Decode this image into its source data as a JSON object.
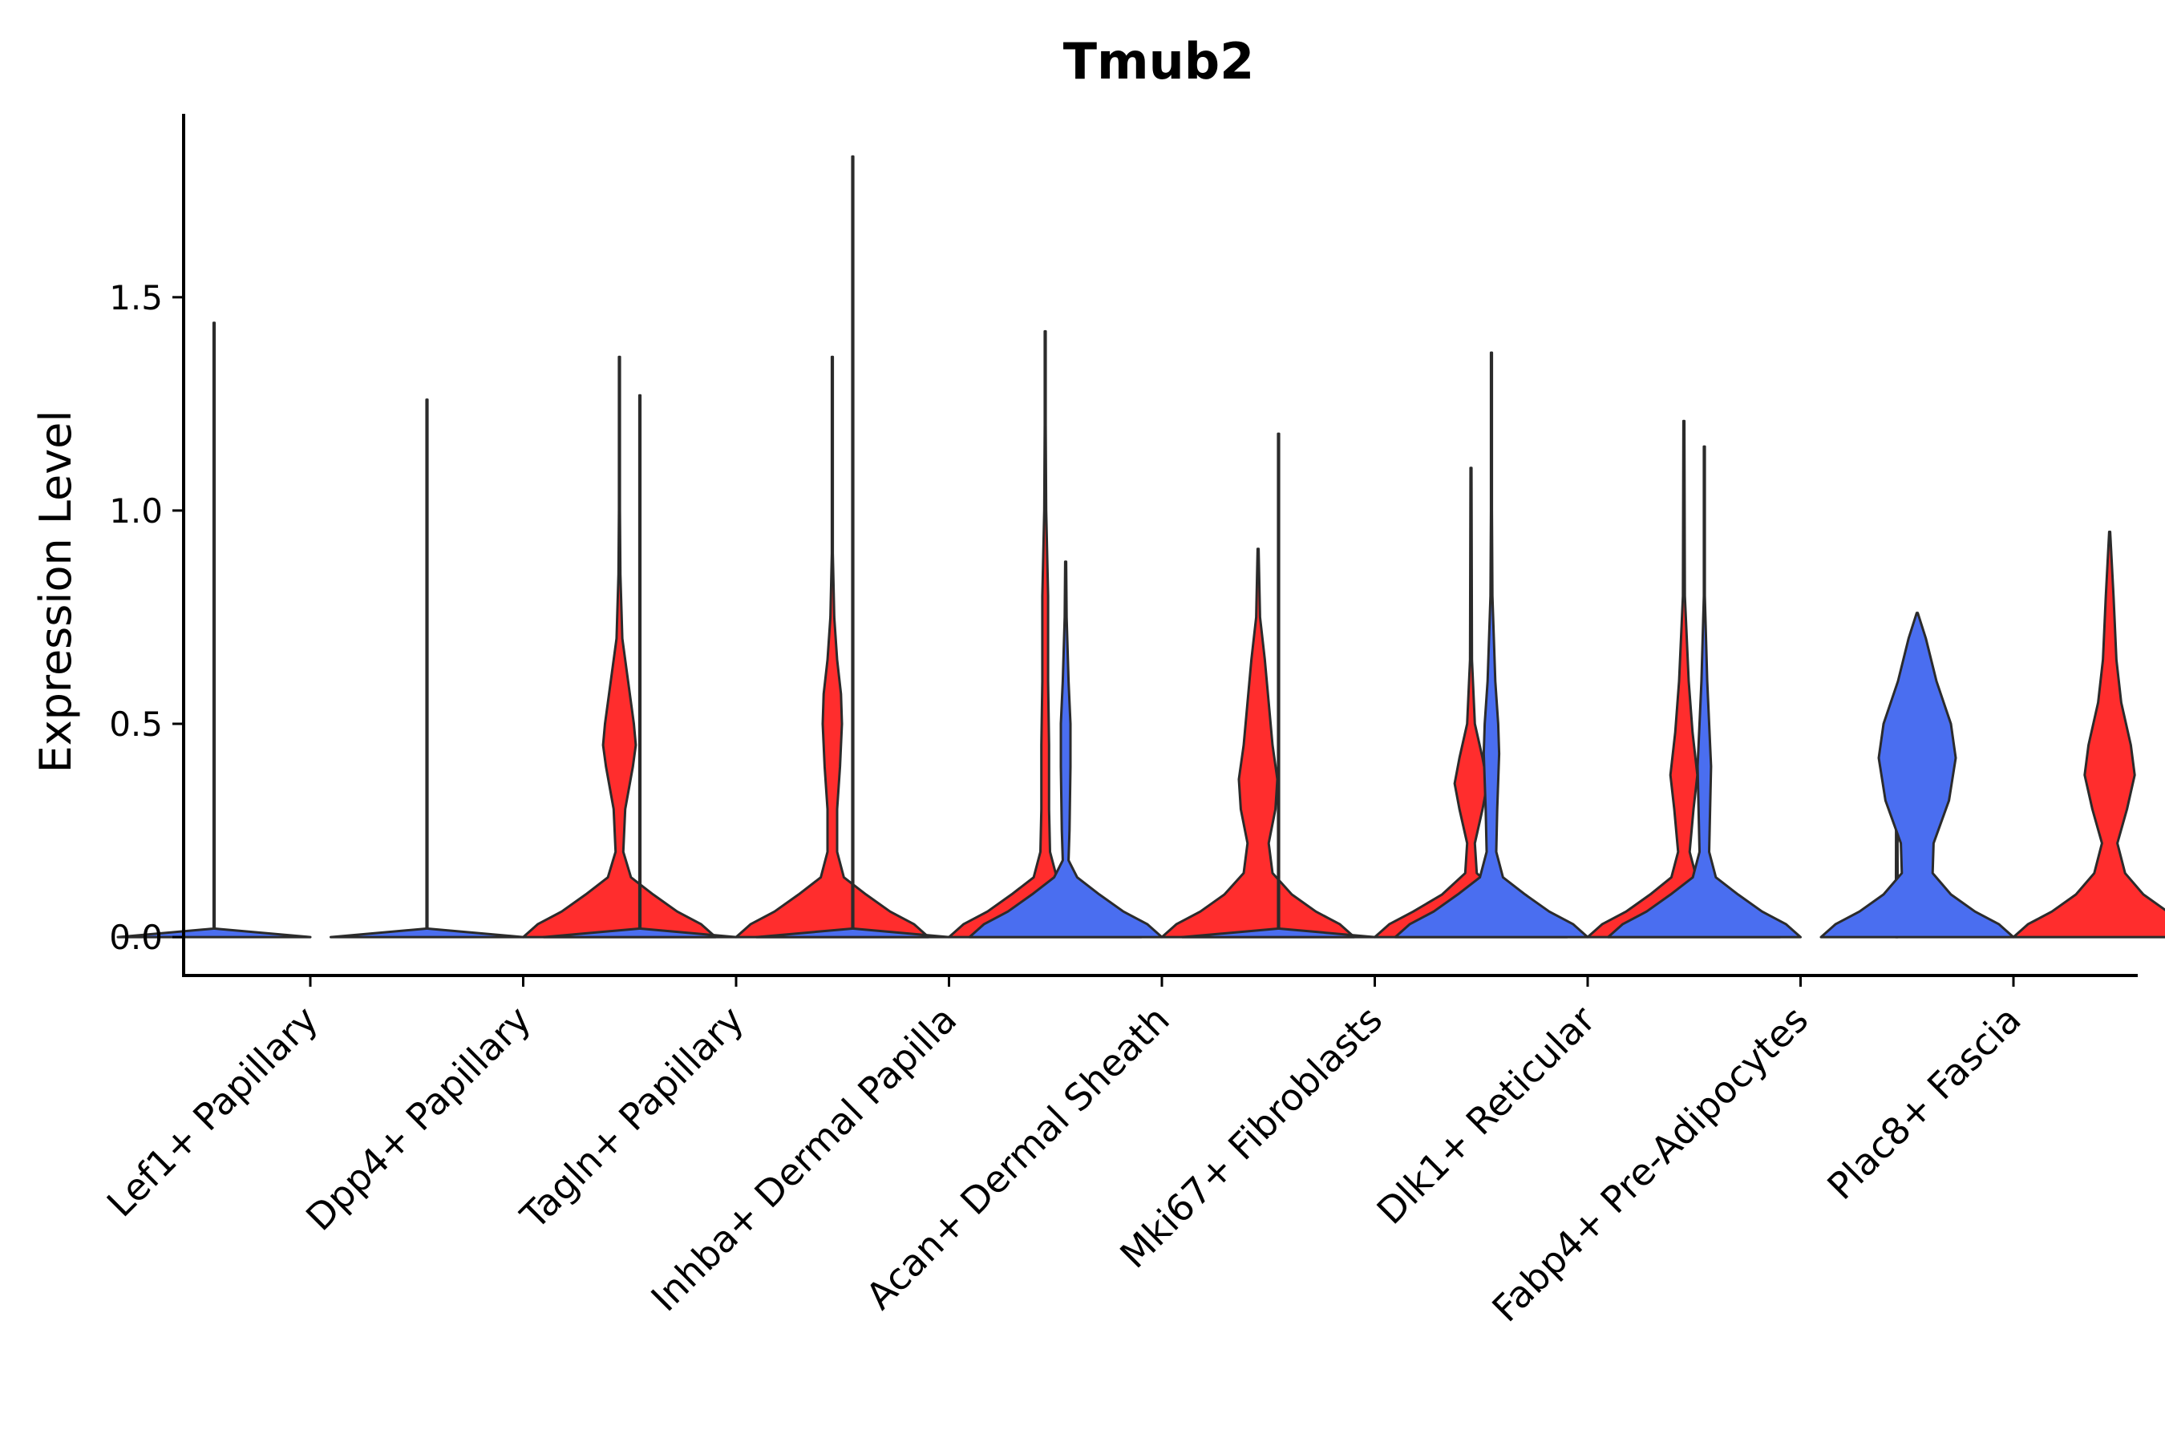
{
  "chart_data": {
    "type": "split-violin",
    "title": "Tmub2",
    "xlabel": "",
    "ylabel": "Expression Level",
    "ylim": [
      -0.09,
      1.93
    ],
    "yticks": [
      0.0,
      0.5,
      1.0,
      1.5
    ],
    "ytick_labels": [
      "0.0",
      "0.5",
      "1.0",
      "1.5"
    ],
    "grid": false,
    "legend": "none",
    "colors": {
      "blue_group": "#4A6EF0",
      "red_group": "#FF2D2D",
      "outline": "#2B2B2B",
      "axis": "#000000"
    },
    "categories": [
      "Lef1+ Papillary",
      "Dpp4+ Papillary",
      "Tagln+ Papillary",
      "Inhba+ Dermal Papilla",
      "Acan+ Dermal Sheath",
      "Mki67+ Fibroblasts",
      "Dlk1+ Reticular",
      "Fabp4+ Pre-Adipocytes",
      "Plac8+ Fascia"
    ],
    "series": [
      {
        "name": "blue group",
        "color": "#4A6EF0",
        "violins": [
          {
            "max": 1.44,
            "profile": [
              [
                0,
                1.0
              ],
              [
                0.02,
                0.0
              ]
            ]
          },
          {
            "max": 1.26,
            "profile": [
              [
                0,
                1.0
              ],
              [
                0.02,
                0.0
              ]
            ]
          },
          {
            "max": 1.27,
            "profile": [
              [
                0,
                1.0
              ],
              [
                0.02,
                0.0
              ]
            ]
          },
          {
            "max": 1.83,
            "profile": [
              [
                0,
                1.0
              ],
              [
                0.02,
                0.0
              ]
            ]
          },
          {
            "max": 0.88,
            "profile": [
              [
                0,
                1.0
              ],
              [
                0.03,
                0.85
              ],
              [
                0.06,
                0.6
              ],
              [
                0.1,
                0.35
              ],
              [
                0.14,
                0.12
              ],
              [
                0.18,
                0.03
              ],
              [
                0.25,
                0.04
              ],
              [
                0.4,
                0.05
              ],
              [
                0.5,
                0.05
              ],
              [
                0.6,
                0.03
              ],
              [
                0.75,
                0.01
              ],
              [
                0.88,
                0.0
              ]
            ]
          },
          {
            "max": 1.18,
            "profile": [
              [
                0,
                1.0
              ],
              [
                0.02,
                0.0
              ]
            ]
          },
          {
            "max": 1.37,
            "profile": [
              [
                0,
                1.0
              ],
              [
                0.03,
                0.85
              ],
              [
                0.06,
                0.6
              ],
              [
                0.1,
                0.35
              ],
              [
                0.14,
                0.12
              ],
              [
                0.2,
                0.05
              ],
              [
                0.3,
                0.06
              ],
              [
                0.43,
                0.08
              ],
              [
                0.5,
                0.07
              ],
              [
                0.6,
                0.04
              ],
              [
                0.8,
                0.01
              ],
              [
                1.0,
                0.005
              ],
              [
                1.37,
                0.0
              ]
            ]
          },
          {
            "max": 1.15,
            "profile": [
              [
                0,
                1.0
              ],
              [
                0.03,
                0.85
              ],
              [
                0.06,
                0.6
              ],
              [
                0.1,
                0.35
              ],
              [
                0.14,
                0.12
              ],
              [
                0.2,
                0.05
              ],
              [
                0.3,
                0.06
              ],
              [
                0.4,
                0.07
              ],
              [
                0.5,
                0.05
              ],
              [
                0.6,
                0.03
              ],
              [
                0.8,
                0.005
              ],
              [
                1.15,
                0.0
              ]
            ]
          },
          {
            "max": 0.76,
            "profile": [
              [
                0,
                1.0
              ],
              [
                0.03,
                0.85
              ],
              [
                0.06,
                0.6
              ],
              [
                0.1,
                0.35
              ],
              [
                0.15,
                0.16
              ],
              [
                0.22,
                0.17
              ],
              [
                0.32,
                0.33
              ],
              [
                0.42,
                0.4
              ],
              [
                0.5,
                0.35
              ],
              [
                0.6,
                0.2
              ],
              [
                0.7,
                0.09
              ],
              [
                0.76,
                0.0
              ]
            ]
          }
        ]
      },
      {
        "name": "red group",
        "color": "#FF2D2D",
        "violins": [
          null,
          {
            "max": 1.36,
            "profile": [
              [
                0,
                1.0
              ],
              [
                0.03,
                0.85
              ],
              [
                0.06,
                0.6
              ],
              [
                0.1,
                0.35
              ],
              [
                0.14,
                0.12
              ],
              [
                0.2,
                0.04
              ],
              [
                0.3,
                0.06
              ],
              [
                0.4,
                0.14
              ],
              [
                0.45,
                0.17
              ],
              [
                0.5,
                0.15
              ],
              [
                0.6,
                0.09
              ],
              [
                0.7,
                0.03
              ],
              [
                0.85,
                0.01
              ],
              [
                1.0,
                0.005
              ],
              [
                1.36,
                0.0
              ]
            ]
          },
          {
            "max": 1.36,
            "profile": [
              [
                0,
                1.0
              ],
              [
                0.03,
                0.85
              ],
              [
                0.06,
                0.6
              ],
              [
                0.1,
                0.35
              ],
              [
                0.14,
                0.12
              ],
              [
                0.2,
                0.05
              ],
              [
                0.3,
                0.05
              ],
              [
                0.4,
                0.08
              ],
              [
                0.5,
                0.1
              ],
              [
                0.57,
                0.09
              ],
              [
                0.65,
                0.05
              ],
              [
                0.75,
                0.02
              ],
              [
                0.9,
                0.005
              ],
              [
                1.36,
                0.0
              ]
            ]
          },
          {
            "max": 1.42,
            "profile": [
              [
                0,
                1.0
              ],
              [
                0.03,
                0.85
              ],
              [
                0.06,
                0.6
              ],
              [
                0.1,
                0.35
              ],
              [
                0.14,
                0.12
              ],
              [
                0.2,
                0.05
              ],
              [
                0.3,
                0.04
              ],
              [
                0.45,
                0.04
              ],
              [
                0.6,
                0.03
              ],
              [
                0.8,
                0.03
              ],
              [
                1.0,
                0.01
              ],
              [
                1.2,
                0.003
              ],
              [
                1.42,
                0.0
              ]
            ]
          },
          {
            "max": 0.91,
            "profile": [
              [
                0,
                1.0
              ],
              [
                0.03,
                0.85
              ],
              [
                0.06,
                0.6
              ],
              [
                0.1,
                0.35
              ],
              [
                0.15,
                0.15
              ],
              [
                0.22,
                0.11
              ],
              [
                0.3,
                0.18
              ],
              [
                0.37,
                0.2
              ],
              [
                0.45,
                0.15
              ],
              [
                0.55,
                0.11
              ],
              [
                0.65,
                0.07
              ],
              [
                0.75,
                0.02
              ],
              [
                0.91,
                0.0
              ]
            ]
          },
          {
            "max": 1.1,
            "profile": [
              [
                0,
                1.0
              ],
              [
                0.03,
                0.85
              ],
              [
                0.06,
                0.6
              ],
              [
                0.1,
                0.3
              ],
              [
                0.15,
                0.06
              ],
              [
                0.22,
                0.04
              ],
              [
                0.3,
                0.12
              ],
              [
                0.36,
                0.17
              ],
              [
                0.42,
                0.12
              ],
              [
                0.5,
                0.04
              ],
              [
                0.65,
                0.01
              ],
              [
                1.1,
                0.0
              ]
            ]
          },
          {
            "max": 1.21,
            "profile": [
              [
                0,
                1.0
              ],
              [
                0.03,
                0.85
              ],
              [
                0.06,
                0.6
              ],
              [
                0.1,
                0.35
              ],
              [
                0.14,
                0.13
              ],
              [
                0.2,
                0.06
              ],
              [
                0.3,
                0.1
              ],
              [
                0.38,
                0.14
              ],
              [
                0.48,
                0.09
              ],
              [
                0.6,
                0.05
              ],
              [
                0.8,
                0.01
              ],
              [
                1.21,
                0.0
              ]
            ]
          },
          {
            "max": 0.49,
            "profile": [
              [
                0,
                0.01
              ],
              [
                0.49,
                0.0
              ]
            ]
          },
          {
            "max": 0.95,
            "profile": [
              [
                0,
                1.0
              ],
              [
                0.03,
                0.85
              ],
              [
                0.06,
                0.6
              ],
              [
                0.1,
                0.35
              ],
              [
                0.15,
                0.16
              ],
              [
                0.22,
                0.08
              ],
              [
                0.3,
                0.18
              ],
              [
                0.38,
                0.26
              ],
              [
                0.45,
                0.22
              ],
              [
                0.55,
                0.12
              ],
              [
                0.65,
                0.07
              ],
              [
                0.8,
                0.04
              ],
              [
                0.95,
                0.0
              ]
            ]
          }
        ]
      }
    ]
  }
}
